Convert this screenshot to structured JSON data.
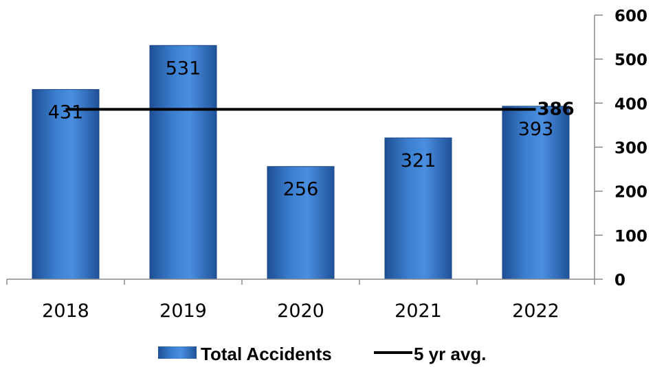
{
  "chart_data": {
    "type": "bar",
    "categories": [
      "2018",
      "2019",
      "2020",
      "2021",
      "2022"
    ],
    "series": [
      {
        "name": "Total Accidents",
        "values": [
          431,
          531,
          256,
          321,
          393
        ],
        "color": "#3b79c9"
      }
    ],
    "lines": [
      {
        "name": "5 yr avg.",
        "value": 386,
        "label": "386",
        "color": "#000000"
      }
    ],
    "ylim": [
      0,
      600
    ],
    "yticks": [
      "0",
      "100",
      "200",
      "300",
      "400",
      "500",
      "600"
    ],
    "yaxis_position": "right",
    "grid": false,
    "legend": "bottom",
    "data_labels": [
      "431",
      "531",
      "256",
      "321",
      "393"
    ]
  }
}
